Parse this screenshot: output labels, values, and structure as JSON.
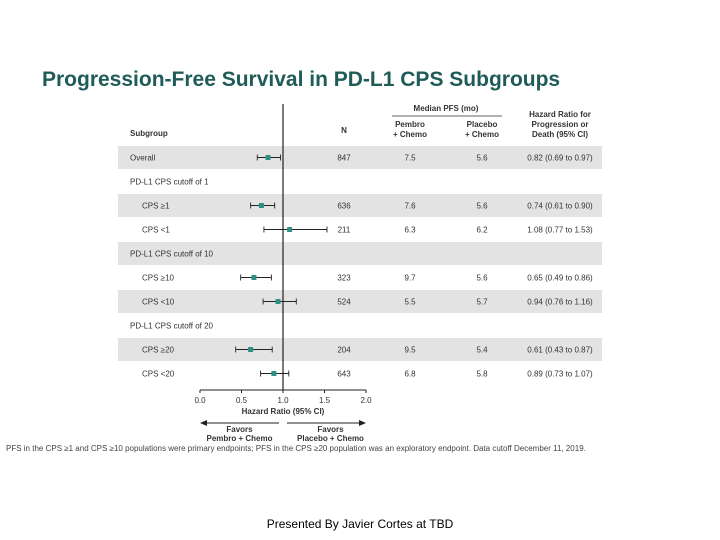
{
  "slide": {
    "title": "Progression-Free Survival in PD-L1 CPS Subgroups",
    "footnote": "PFS in the CPS ≥1 and CPS ≥10 populations were primary endpoints; PFS in the CPS ≥20 population was an exploratory endpoint. Data cutoff December 11, 2019.",
    "presenter": "Presented By Javier Cortes at TBD"
  },
  "chart_data": {
    "type": "forest",
    "headers": {
      "subgroup": "Subgroup",
      "n": "N",
      "median_pfs": "Median PFS (mo)",
      "pembro": [
        "Pembro",
        "+ Chemo"
      ],
      "placebo": [
        "Placebo",
        "+ Chemo"
      ],
      "hr": [
        "Hazard Ratio for",
        "Progression or",
        "Death (95% CI)"
      ]
    },
    "rows": [
      {
        "label": "Overall",
        "indent": false,
        "shaded": true,
        "n": "847",
        "pembro": "7.5",
        "placebo": "5.6",
        "hr_text": "0.82 (0.69 to 0.97)",
        "hr": 0.82,
        "lo": 0.69,
        "hi": 0.97
      },
      {
        "label": "PD-L1 CPS cutoff of 1",
        "indent": false,
        "shaded": false,
        "header": true
      },
      {
        "label": "CPS ≥1",
        "indent": true,
        "shaded": true,
        "n": "636",
        "pembro": "7.6",
        "placebo": "5.6",
        "hr_text": "0.74 (0.61 to 0.90)",
        "hr": 0.74,
        "lo": 0.61,
        "hi": 0.9
      },
      {
        "label": "CPS <1",
        "indent": true,
        "shaded": false,
        "n": "211",
        "pembro": "6.3",
        "placebo": "6.2",
        "hr_text": "1.08 (0.77 to 1.53)",
        "hr": 1.08,
        "lo": 0.77,
        "hi": 1.53
      },
      {
        "label": "PD-L1 CPS cutoff of 10",
        "indent": false,
        "shaded": true,
        "header": true
      },
      {
        "label": "CPS ≥10",
        "indent": true,
        "shaded": false,
        "n": "323",
        "pembro": "9.7",
        "placebo": "5.6",
        "hr_text": "0.65 (0.49 to 0.86)",
        "hr": 0.65,
        "lo": 0.49,
        "hi": 0.86
      },
      {
        "label": "CPS <10",
        "indent": true,
        "shaded": true,
        "n": "524",
        "pembro": "5.5",
        "placebo": "5.7",
        "hr_text": "0.94 (0.76 to 1.16)",
        "hr": 0.94,
        "lo": 0.76,
        "hi": 1.16
      },
      {
        "label": "PD-L1 CPS cutoff of 20",
        "indent": false,
        "shaded": false,
        "header": true
      },
      {
        "label": "CPS ≥20",
        "indent": true,
        "shaded": true,
        "n": "204",
        "pembro": "9.5",
        "placebo": "5.4",
        "hr_text": "0.61 (0.43 to 0.87)",
        "hr": 0.61,
        "lo": 0.43,
        "hi": 0.87
      },
      {
        "label": "CPS <20",
        "indent": true,
        "shaded": false,
        "n": "643",
        "pembro": "6.8",
        "placebo": "5.8",
        "hr_text": "0.89 (0.73 to 1.07)",
        "hr": 0.89,
        "lo": 0.73,
        "hi": 1.07
      }
    ],
    "x_axis": {
      "ticks": [
        0.0,
        0.5,
        1.0,
        1.5,
        2.0
      ],
      "tick_labels": [
        "0.0",
        "0.5",
        "1.0",
        "1.5",
        "2.0"
      ],
      "range": [
        0,
        2
      ],
      "reference": 1.0,
      "label": "Hazard Ratio (95% CI)"
    },
    "favors": {
      "left": [
        "Favors",
        "Pembro + Chemo"
      ],
      "right": [
        "Favors",
        "Placebo + Chemo"
      ]
    },
    "colors": {
      "marker": "#2f8f86",
      "shade": "#e3e3e3",
      "line": "#222222"
    }
  }
}
